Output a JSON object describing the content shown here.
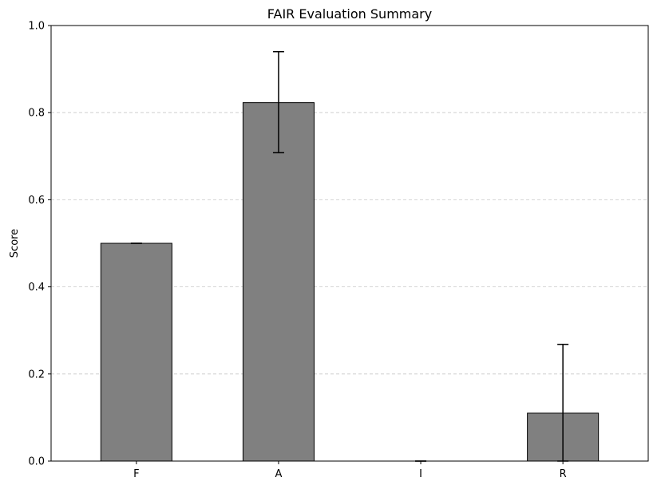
{
  "chart_data": {
    "type": "bar",
    "title": "FAIR Evaluation Summary",
    "xlabel": "",
    "ylabel": "Score",
    "categories": [
      "F",
      "A",
      "I",
      "R"
    ],
    "values": [
      0.5,
      0.823,
      0.0,
      0.11
    ],
    "error_low": [
      0.5,
      0.708,
      0.0,
      0.0
    ],
    "error_high": [
      0.5,
      0.94,
      0.0,
      0.268
    ],
    "ylim": [
      0,
      1.0
    ],
    "yticks": [
      "0.0",
      "0.2",
      "0.4",
      "0.6",
      "0.8",
      "1.0"
    ],
    "ytick_values": [
      0,
      0.2,
      0.4,
      0.6,
      0.8,
      1.0
    ],
    "grid": "horizontal-dashed",
    "bar_color": "#808080",
    "edge_color": "#000000",
    "grid_color": "#c8c8c8"
  }
}
